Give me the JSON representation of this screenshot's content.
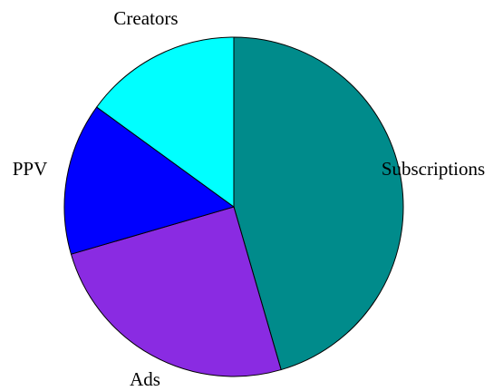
{
  "chart_data": {
    "type": "pie",
    "start_angle_deg": 90,
    "direction": "clockwise",
    "legend": "none",
    "slices": [
      {
        "label": "Subscriptions",
        "value": 45.5,
        "color": "#008b8b"
      },
      {
        "label": "Ads",
        "value": 25.0,
        "color": "#8a2be2"
      },
      {
        "label": "PPV",
        "value": 14.5,
        "color": "#0000ff"
      },
      {
        "label": "Creators",
        "value": 15.0,
        "color": "#00ffff"
      }
    ]
  }
}
